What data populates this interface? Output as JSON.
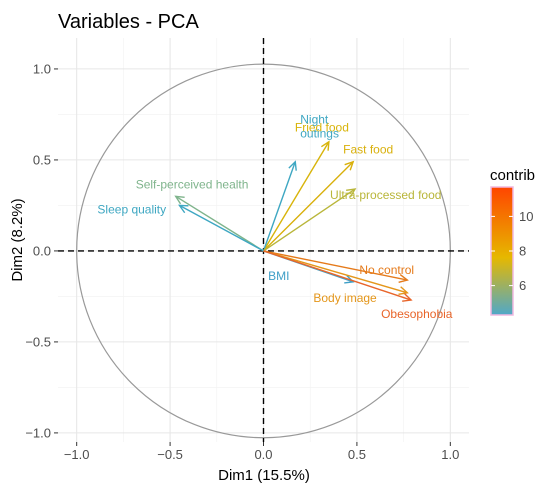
{
  "chart_data": {
    "type": "scatter",
    "title": "Variables - PCA",
    "xlabel": "Dim1 (15.5%)",
    "ylabel": "Dim2 (8.2%)",
    "xlim": [
      -1.1,
      1.1
    ],
    "ylim": [
      -1.05,
      1.17
    ],
    "xticks": [
      -1.0,
      -0.5,
      0.0,
      0.5,
      1.0
    ],
    "yticks": [
      -1.0,
      -0.5,
      0.0,
      0.5,
      1.0
    ],
    "xtick_labels": [
      "−1.0",
      "−0.5",
      "0.0",
      "0.5",
      "1.0"
    ],
    "ytick_labels": [
      "−1.0",
      "−0.5",
      "0.0",
      "0.5",
      "1.0"
    ],
    "grid": true,
    "correlation_circle": true,
    "legend": {
      "title": "contrib",
      "placement": "right",
      "min": 4.3,
      "max": 11.7,
      "ticks": [
        6,
        8,
        10
      ],
      "tick_labels": [
        "6",
        "8",
        "10"
      ],
      "colors": [
        "#4fa8c9",
        "#e6b800",
        "#ff4500"
      ]
    },
    "variables": [
      {
        "label": "Fried food",
        "x": 0.35,
        "y": 0.6,
        "contrib": 8.4,
        "color": "#d8b40a"
      },
      {
        "label": "Night outings",
        "x": 0.17,
        "y": 0.49,
        "contrib": 5.2,
        "color": "#3ea7c2"
      },
      {
        "label": "Fast food",
        "x": 0.48,
        "y": 0.49,
        "contrib": 8.6,
        "color": "#d9b00b"
      },
      {
        "label": "Ultra-processed food",
        "x": 0.49,
        "y": 0.34,
        "contrib": 7.6,
        "color": "#b9b63a"
      },
      {
        "label": "Self-perceived health",
        "x": -0.47,
        "y": 0.3,
        "contrib": 6.6,
        "color": "#7fb48c"
      },
      {
        "label": "Sleep quality",
        "x": -0.45,
        "y": 0.25,
        "contrib": 5.3,
        "color": "#3ea7c2"
      },
      {
        "label": "BMI",
        "x": 0.48,
        "y": -0.17,
        "contrib": 5.0,
        "color": "#40a0c8"
      },
      {
        "label": "No control",
        "x": 0.77,
        "y": -0.16,
        "contrib": 10.3,
        "color": "#e57a1a"
      },
      {
        "label": "Body image",
        "x": 0.77,
        "y": -0.23,
        "contrib": 9.6,
        "color": "#e4961a"
      },
      {
        "label": "Obesophobia",
        "x": 0.79,
        "y": -0.27,
        "contrib": 11.2,
        "color": "#e8652a"
      }
    ]
  }
}
